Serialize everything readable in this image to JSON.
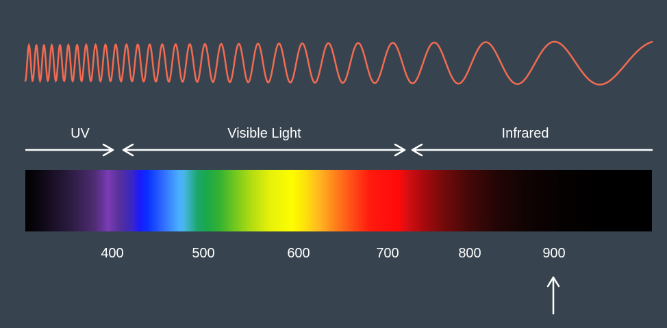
{
  "colors": {
    "background": "#37444f",
    "wave": "#f26b52",
    "arrows": "#ffffff",
    "text": "#ffffff"
  },
  "regions": [
    {
      "label": "UV"
    },
    {
      "label": "Visible Light"
    },
    {
      "label": "Infrared"
    }
  ],
  "ticks": [
    "400",
    "500",
    "600",
    "700",
    "800",
    "900"
  ],
  "marker": {
    "icon": "up-arrow-icon",
    "points_to": "900"
  }
}
